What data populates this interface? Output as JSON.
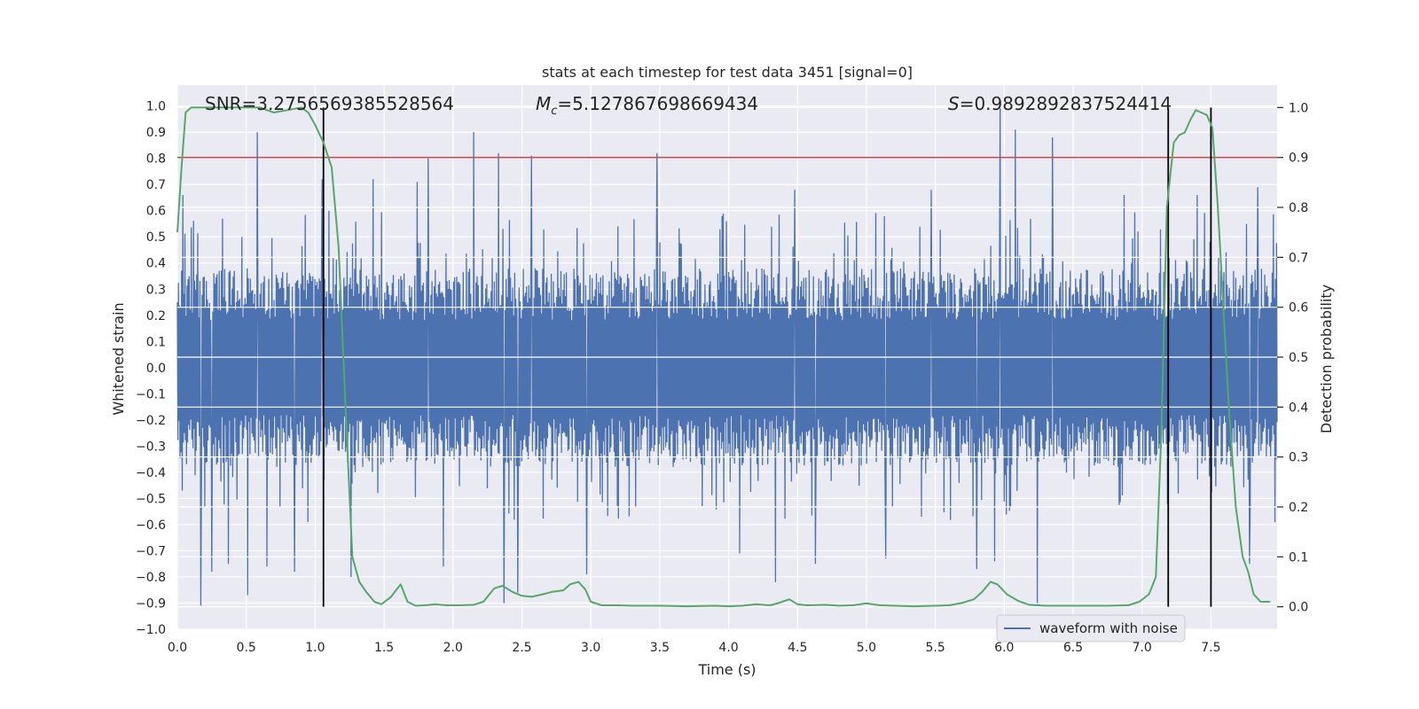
{
  "chart_data": {
    "type": "line",
    "title": "stats at each timestep for test data 3451 [signal=0]",
    "xlabel": "Time (s)",
    "ylabel_left": "Whitened strain",
    "ylabel_right": "Detection probability",
    "xlim": [
      0.0,
      7.98
    ],
    "ylim_left": [
      -1.0,
      1.08
    ],
    "ylim_right": [
      -0.045,
      1.045
    ],
    "x_ticks": [
      "0.0",
      "0.5",
      "1.0",
      "1.5",
      "2.0",
      "2.5",
      "3.0",
      "3.5",
      "4.0",
      "4.5",
      "5.0",
      "5.5",
      "6.0",
      "6.5",
      "7.0",
      "7.5"
    ],
    "y_left_ticks": [
      "-1.0",
      "-0.9",
      "-0.8",
      "-0.7",
      "-0.6",
      "-0.5",
      "-0.4",
      "-0.3",
      "-0.2",
      "-0.1",
      "0.0",
      "0.1",
      "0.2",
      "0.3",
      "0.4",
      "0.5",
      "0.6",
      "0.7",
      "0.8",
      "0.9",
      "1.0"
    ],
    "y_right_ticks": [
      "0.0",
      "0.1",
      "0.2",
      "0.3",
      "0.4",
      "0.5",
      "0.6",
      "0.7",
      "0.8",
      "0.9",
      "1.0"
    ],
    "grid": true,
    "legend_position": "lower-right",
    "annotations": {
      "snr": "SNR=3.2756569385528564",
      "mc_symbol": "M",
      "mc_sub": "c",
      "mc_value": "=5.127867698669434",
      "s_symbol": "S",
      "s_value": "=0.9892892837524414"
    },
    "threshold_line": {
      "axis": "right",
      "y": 0.9,
      "color": "#c44e52"
    },
    "vertical_lines": [
      1.06,
      7.19,
      7.5
    ],
    "vertical_lines_range_right": [
      0.0,
      1.0
    ],
    "colors": {
      "background": "#eaeaf2",
      "waveform": "#4c72b0",
      "probability": "#55a868",
      "threshold": "#c44e52",
      "markers": "#000000"
    },
    "series": [
      {
        "name": "waveform with noise",
        "axis": "left",
        "description_in_legend": true,
        "generated_noise": {
          "samples": 2048,
          "core_amplitude": 0.33,
          "mean": 0.0
        },
        "peaks": [
          [
            0.04,
            0.66
          ],
          [
            0.17,
            -0.91
          ],
          [
            0.25,
            -0.78
          ],
          [
            0.37,
            -0.75
          ],
          [
            0.51,
            -0.87
          ],
          [
            0.58,
            0.9
          ],
          [
            0.65,
            -0.76
          ],
          [
            0.85,
            -0.78
          ],
          [
            1.05,
            0.72
          ],
          [
            1.1,
            0.6
          ],
          [
            1.26,
            -0.8
          ],
          [
            1.42,
            0.72
          ],
          [
            1.74,
            0.71
          ],
          [
            1.82,
            0.8
          ],
          [
            1.93,
            -0.76
          ],
          [
            2.15,
            0.9
          ],
          [
            2.33,
            0.82
          ],
          [
            2.37,
            -0.9
          ],
          [
            2.47,
            -0.86
          ],
          [
            2.57,
            0.81
          ],
          [
            2.97,
            -0.79
          ],
          [
            3.48,
            0.82
          ],
          [
            4.08,
            -0.71
          ],
          [
            4.34,
            -0.82
          ],
          [
            4.48,
            0.68
          ],
          [
            4.63,
            -0.75
          ],
          [
            5.14,
            -0.73
          ],
          [
            5.47,
            0.68
          ],
          [
            5.8,
            -0.77
          ],
          [
            5.93,
            -0.74
          ],
          [
            5.97,
            1.0
          ],
          [
            6.08,
            0.91
          ],
          [
            6.24,
            -0.9
          ],
          [
            6.35,
            0.88
          ],
          [
            6.87,
            0.66
          ],
          [
            7.4,
            0.66
          ],
          [
            7.78,
            -0.75
          ],
          [
            7.84,
            0.69
          ]
        ]
      },
      {
        "name": "",
        "axis": "right",
        "points": [
          [
            0.0,
            0.75
          ],
          [
            0.03,
            0.88
          ],
          [
            0.06,
            0.99
          ],
          [
            0.1,
            1.0
          ],
          [
            0.2,
            1.0
          ],
          [
            0.3,
            1.0
          ],
          [
            0.4,
            1.0
          ],
          [
            0.5,
            1.0
          ],
          [
            0.6,
            1.0
          ],
          [
            0.7,
            0.99
          ],
          [
            0.8,
            0.995
          ],
          [
            0.9,
            1.0
          ],
          [
            0.95,
            0.99
          ],
          [
            1.0,
            0.965
          ],
          [
            1.06,
            0.93
          ],
          [
            1.12,
            0.88
          ],
          [
            1.17,
            0.72
          ],
          [
            1.22,
            0.4
          ],
          [
            1.27,
            0.1
          ],
          [
            1.32,
            0.05
          ],
          [
            1.37,
            0.03
          ],
          [
            1.43,
            0.01
          ],
          [
            1.48,
            0.005
          ],
          [
            1.55,
            0.02
          ],
          [
            1.62,
            0.045
          ],
          [
            1.67,
            0.01
          ],
          [
            1.73,
            0.002
          ],
          [
            1.8,
            0.003
          ],
          [
            1.87,
            0.005
          ],
          [
            1.95,
            0.003
          ],
          [
            2.05,
            0.003
          ],
          [
            2.15,
            0.004
          ],
          [
            2.22,
            0.01
          ],
          [
            2.3,
            0.037
          ],
          [
            2.36,
            0.042
          ],
          [
            2.43,
            0.03
          ],
          [
            2.5,
            0.022
          ],
          [
            2.57,
            0.02
          ],
          [
            2.65,
            0.025
          ],
          [
            2.72,
            0.03
          ],
          [
            2.8,
            0.033
          ],
          [
            2.85,
            0.045
          ],
          [
            2.91,
            0.05
          ],
          [
            2.96,
            0.035
          ],
          [
            3.0,
            0.01
          ],
          [
            3.08,
            0.003
          ],
          [
            3.2,
            0.003
          ],
          [
            3.3,
            0.002
          ],
          [
            3.5,
            0.002
          ],
          [
            3.7,
            0.001
          ],
          [
            3.9,
            0.002
          ],
          [
            4.0,
            0.001
          ],
          [
            4.1,
            0.002
          ],
          [
            4.2,
            0.005
          ],
          [
            4.3,
            0.003
          ],
          [
            4.37,
            0.008
          ],
          [
            4.44,
            0.015
          ],
          [
            4.5,
            0.005
          ],
          [
            4.57,
            0.003
          ],
          [
            4.7,
            0.004
          ],
          [
            4.8,
            0.002
          ],
          [
            4.9,
            0.003
          ],
          [
            5.0,
            0.007
          ],
          [
            5.1,
            0.003
          ],
          [
            5.2,
            0.002
          ],
          [
            5.35,
            0.001
          ],
          [
            5.5,
            0.002
          ],
          [
            5.6,
            0.003
          ],
          [
            5.7,
            0.008
          ],
          [
            5.78,
            0.015
          ],
          [
            5.84,
            0.03
          ],
          [
            5.9,
            0.05
          ],
          [
            5.95,
            0.045
          ],
          [
            6.02,
            0.025
          ],
          [
            6.1,
            0.012
          ],
          [
            6.18,
            0.004
          ],
          [
            6.3,
            0.002
          ],
          [
            6.45,
            0.002
          ],
          [
            6.6,
            0.002
          ],
          [
            6.75,
            0.002
          ],
          [
            6.9,
            0.003
          ],
          [
            6.98,
            0.01
          ],
          [
            7.05,
            0.025
          ],
          [
            7.1,
            0.06
          ],
          [
            7.14,
            0.35
          ],
          [
            7.18,
            0.8
          ],
          [
            7.23,
            0.93
          ],
          [
            7.27,
            0.945
          ],
          [
            7.31,
            0.95
          ],
          [
            7.35,
            0.975
          ],
          [
            7.39,
            0.995
          ],
          [
            7.43,
            0.99
          ],
          [
            7.47,
            0.985
          ],
          [
            7.51,
            0.96
          ],
          [
            7.55,
            0.8
          ],
          [
            7.59,
            0.6
          ],
          [
            7.63,
            0.4
          ],
          [
            7.68,
            0.2
          ],
          [
            7.73,
            0.1
          ],
          [
            7.77,
            0.07
          ],
          [
            7.81,
            0.025
          ],
          [
            7.86,
            0.01
          ],
          [
            7.9,
            0.01
          ],
          [
            7.93,
            0.01
          ]
        ]
      }
    ]
  }
}
